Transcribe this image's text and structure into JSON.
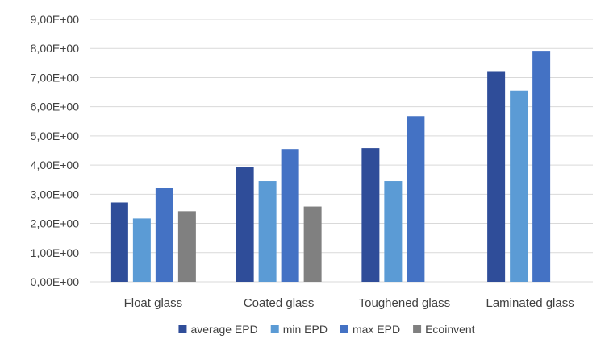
{
  "chart_data": {
    "type": "bar",
    "title": "",
    "xlabel": "",
    "ylabel": "",
    "categories": [
      "Float glass",
      "Coated glass",
      "Toughened glass",
      "Laminated glass"
    ],
    "series": [
      {
        "name": "average EPD",
        "color": "#2f4d99",
        "values": [
          2.72,
          3.92,
          4.58,
          7.22
        ]
      },
      {
        "name": "min EPD",
        "color": "#5b9bd5",
        "values": [
          2.17,
          3.45,
          3.45,
          6.55
        ]
      },
      {
        "name": "max EPD",
        "color": "#4472c4",
        "values": [
          3.22,
          4.55,
          5.68,
          7.92
        ]
      },
      {
        "name": "Ecoinvent",
        "color": "#808080",
        "values": [
          2.42,
          2.58,
          null,
          null
        ]
      }
    ],
    "ylim": [
      0,
      9
    ],
    "yticks": [
      0,
      1,
      2,
      3,
      4,
      5,
      6,
      7,
      8,
      9
    ],
    "ytick_labels": [
      "0,00E+00",
      "1,00E+00",
      "2,00E+00",
      "3,00E+00",
      "4,00E+00",
      "5,00E+00",
      "6,00E+00",
      "7,00E+00",
      "8,00E+00",
      "9,00E+00"
    ],
    "grid": true,
    "legend": "bottom"
  }
}
